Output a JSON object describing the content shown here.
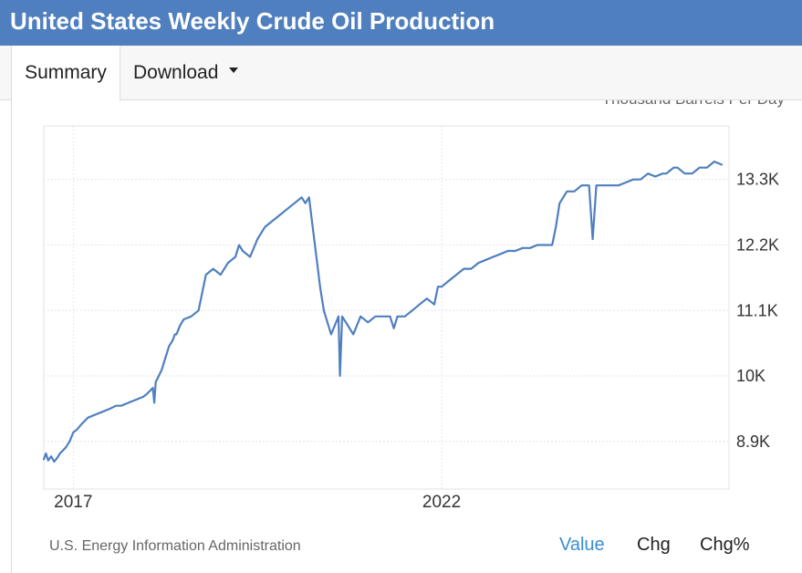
{
  "header": {
    "title": "United States Weekly Crude Oil Production"
  },
  "tabs": [
    {
      "label": "Summary"
    },
    {
      "label": "Download"
    }
  ],
  "chart_data": {
    "type": "line",
    "title": "",
    "xlabel": "",
    "ylabel": "Thousand Barrels Per Day",
    "units": "Thousand Barrels Per Day",
    "ylim": [
      8100,
      14200
    ],
    "xlim": [
      2016.6,
      2025.9
    ],
    "x_ticks": [
      {
        "x": 2017,
        "label": "2017"
      },
      {
        "x": 2022,
        "label": "2022"
      }
    ],
    "y_ticks": [
      {
        "y": 8900,
        "label": "8.9K"
      },
      {
        "y": 10000,
        "label": "10K"
      },
      {
        "y": 11100,
        "label": "11.1K"
      },
      {
        "y": 12200,
        "label": "12.2K"
      },
      {
        "y": 13300,
        "label": "13.3K"
      }
    ],
    "grid": true,
    "legend": "none",
    "line_color": "#4f7fbf",
    "series": [
      {
        "x": [
          2016.6,
          2016.63,
          2016.66,
          2016.7,
          2016.74,
          2016.78,
          2016.82,
          2016.86,
          2016.9,
          2016.95,
          2017.0,
          2017.05,
          2017.12,
          2017.2,
          2017.3,
          2017.4,
          2017.5,
          2017.58,
          2017.65,
          2017.75,
          2017.85,
          2017.95,
          2018.0,
          2018.08,
          2018.1,
          2018.12,
          2018.2,
          2018.25,
          2018.3,
          2018.35,
          2018.38,
          2018.4,
          2018.45,
          2018.5,
          2018.6,
          2018.7,
          2018.8,
          2018.9,
          2019.0,
          2019.1,
          2019.2,
          2019.25,
          2019.3,
          2019.4,
          2019.5,
          2019.6,
          2019.7,
          2019.8,
          2019.9,
          2020.0,
          2020.1,
          2020.15,
          2020.2,
          2020.25,
          2020.3,
          2020.35,
          2020.4,
          2020.5,
          2020.6,
          2020.62,
          2020.65,
          2020.7,
          2020.8,
          2020.9,
          2021.0,
          2021.1,
          2021.2,
          2021.3,
          2021.35,
          2021.4,
          2021.5,
          2021.6,
          2021.7,
          2021.8,
          2021.9,
          2021.95,
          2022.0,
          2022.1,
          2022.2,
          2022.3,
          2022.4,
          2022.5,
          2022.6,
          2022.7,
          2022.8,
          2022.9,
          2023.0,
          2023.1,
          2023.2,
          2023.3,
          2023.4,
          2023.45,
          2023.5,
          2023.55,
          2023.6,
          2023.65,
          2023.7,
          2023.8,
          2023.9,
          2024.0,
          2024.05,
          2024.1,
          2024.2,
          2024.3,
          2024.4,
          2024.5,
          2024.6,
          2024.7,
          2024.8,
          2024.9,
          2025.0,
          2025.05,
          2025.1,
          2025.15,
          2025.2,
          2025.3,
          2025.4,
          2025.5,
          2025.6,
          2025.7,
          2025.8
        ],
        "y": [
          8600,
          8700,
          8580,
          8650,
          8560,
          8620,
          8700,
          8750,
          8800,
          8900,
          9050,
          9100,
          9200,
          9300,
          9350,
          9400,
          9450,
          9500,
          9500,
          9550,
          9600,
          9650,
          9700,
          9800,
          9550,
          9900,
          10100,
          10300,
          10500,
          10600,
          10700,
          10700,
          10850,
          10950,
          11000,
          11100,
          11700,
          11800,
          11700,
          11900,
          12000,
          12200,
          12100,
          12000,
          12300,
          12500,
          12600,
          12700,
          12800,
          12900,
          13000,
          12900,
          13000,
          12500,
          12000,
          11500,
          11100,
          10700,
          11000,
          10000,
          11000,
          10900,
          10700,
          11000,
          10900,
          11000,
          11000,
          11000,
          10800,
          11000,
          11000,
          11100,
          11200,
          11300,
          11200,
          11500,
          11500,
          11600,
          11700,
          11800,
          11800,
          11900,
          11950,
          12000,
          12050,
          12100,
          12100,
          12150,
          12150,
          12200,
          12200,
          12200,
          12200,
          12500,
          12900,
          13000,
          13100,
          13100,
          13200,
          13200,
          12300,
          13200,
          13200,
          13200,
          13200,
          13250,
          13300,
          13300,
          13400,
          13350,
          13400,
          13400,
          13450,
          13500,
          13500,
          13400,
          13400,
          13500,
          13500,
          13600,
          13550
        ]
      }
    ]
  },
  "units_label": "Thousand Barrels Per Day",
  "footer": {
    "source": "U.S. Energy Information Administration",
    "buttons": [
      "Value",
      "Chg",
      "Chg%"
    ]
  }
}
